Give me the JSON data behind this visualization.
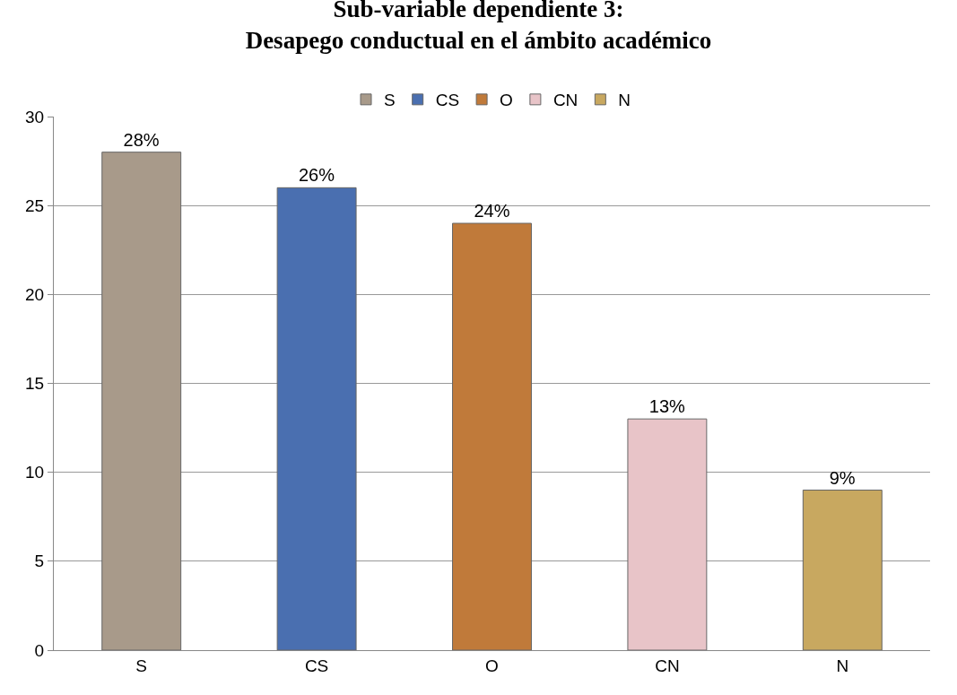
{
  "chart_data": {
    "type": "bar",
    "title": "Sub-variable dependiente 3:\nDesapego conductual en el ámbito académico",
    "categories": [
      "S",
      "CS",
      "O",
      "CN",
      "N"
    ],
    "series": [
      {
        "name": "S",
        "color": "#a89a8a",
        "values": [
          28,
          null,
          null,
          null,
          null
        ],
        "value_labels": [
          "28%",
          null,
          null,
          null,
          null
        ]
      },
      {
        "name": "CS",
        "color": "#4a6fb0",
        "values": [
          null,
          26,
          null,
          null,
          null
        ],
        "value_labels": [
          null,
          "26%",
          null,
          null,
          null
        ]
      },
      {
        "name": "O",
        "color": "#c07a3a",
        "values": [
          null,
          null,
          24,
          null,
          null
        ],
        "value_labels": [
          null,
          null,
          "24%",
          null,
          null
        ]
      },
      {
        "name": "CN",
        "color": "#e8c4c8",
        "values": [
          null,
          null,
          null,
          13,
          null
        ],
        "value_labels": [
          null,
          null,
          null,
          "13%",
          null
        ]
      },
      {
        "name": "N",
        "color": "#c8a860",
        "values": [
          null,
          null,
          null,
          null,
          9
        ],
        "value_labels": [
          null,
          null,
          null,
          null,
          "9%"
        ]
      }
    ],
    "ylim": [
      0,
      30
    ],
    "yticks": [
      0,
      5,
      10,
      15,
      20,
      25,
      30
    ],
    "grid": "y",
    "legend": "top"
  }
}
